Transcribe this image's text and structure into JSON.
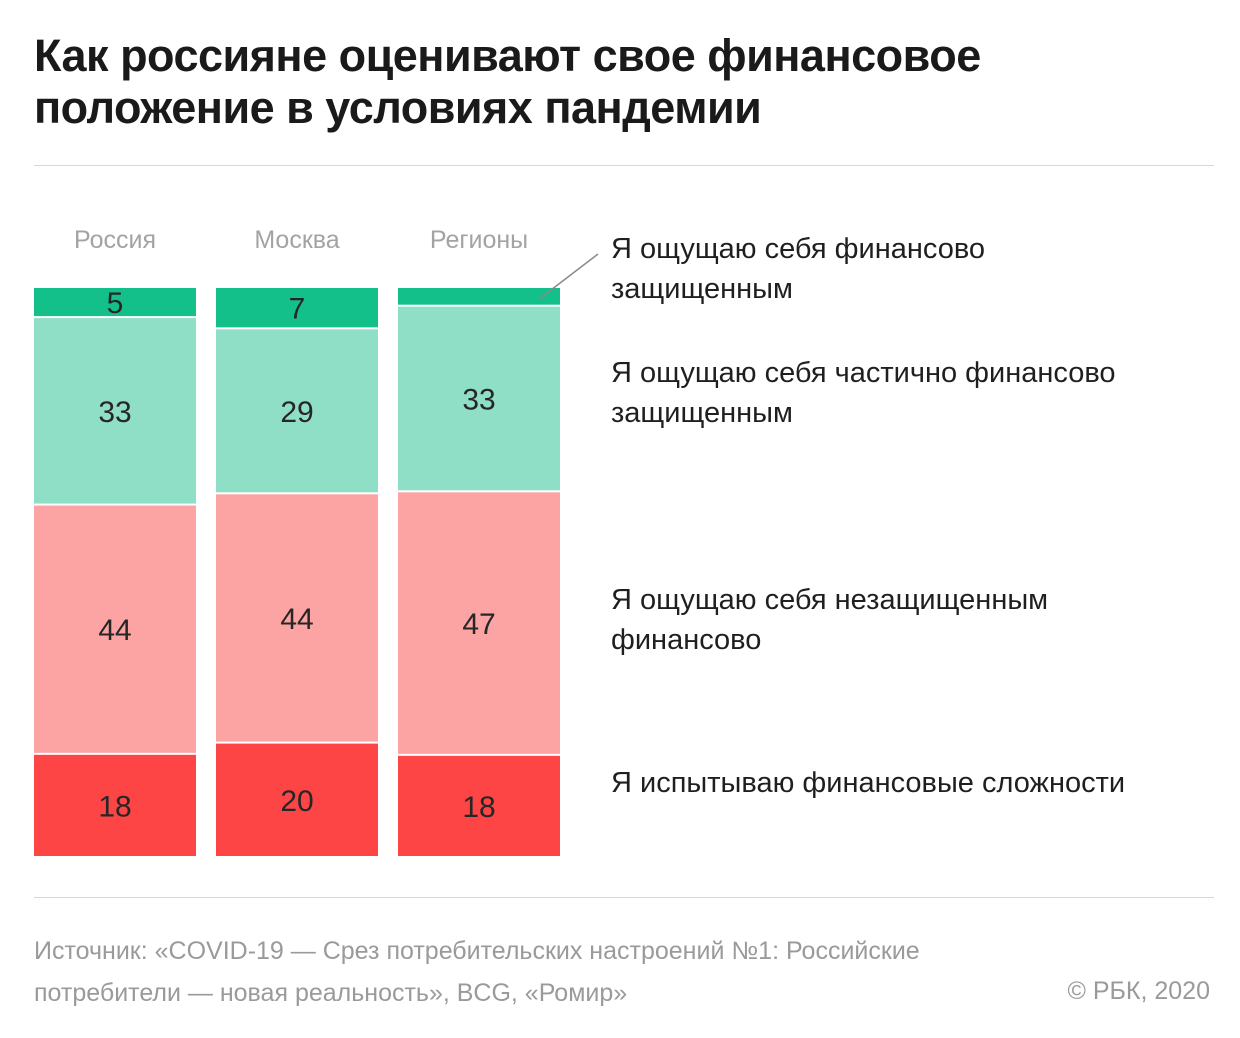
{
  "title": "Как россияне оценивают свое финансовое положение в условиях пандемии",
  "source_text": "Источник: «COVID-19 — Срез потребительских настроений №1: Российские потребители — новая реальность», BCG, «Ромир»",
  "copyright": "© РБК, 2020",
  "chart_data": {
    "type": "bar",
    "stacked": true,
    "orientation": "vertical",
    "unit": "%",
    "categories": [
      "Россия",
      "Москва",
      "Регионы"
    ],
    "series": [
      {
        "name": "Я ощущаю себя финансово защищенным",
        "values": [
          5,
          7,
          3
        ],
        "labels": [
          "5",
          "7",
          ""
        ],
        "color": "#14c08a"
      },
      {
        "name": "Я ощущаю себя частично финансово защищенным",
        "values": [
          33,
          29,
          33
        ],
        "labels": [
          "33",
          "29",
          "33"
        ],
        "color": "#8fdfc6"
      },
      {
        "name": "Я ощущаю себя незащищенным финансово",
        "values": [
          44,
          44,
          47
        ],
        "labels": [
          "44",
          "44",
          "47"
        ],
        "color": "#fca3a3"
      },
      {
        "name": "Я испытываю финансовые сложности",
        "values": [
          18,
          20,
          18
        ],
        "labels": [
          "18",
          "20",
          "18"
        ],
        "color": "#fd4545"
      }
    ],
    "legend_placement": "right",
    "grid": false
  }
}
